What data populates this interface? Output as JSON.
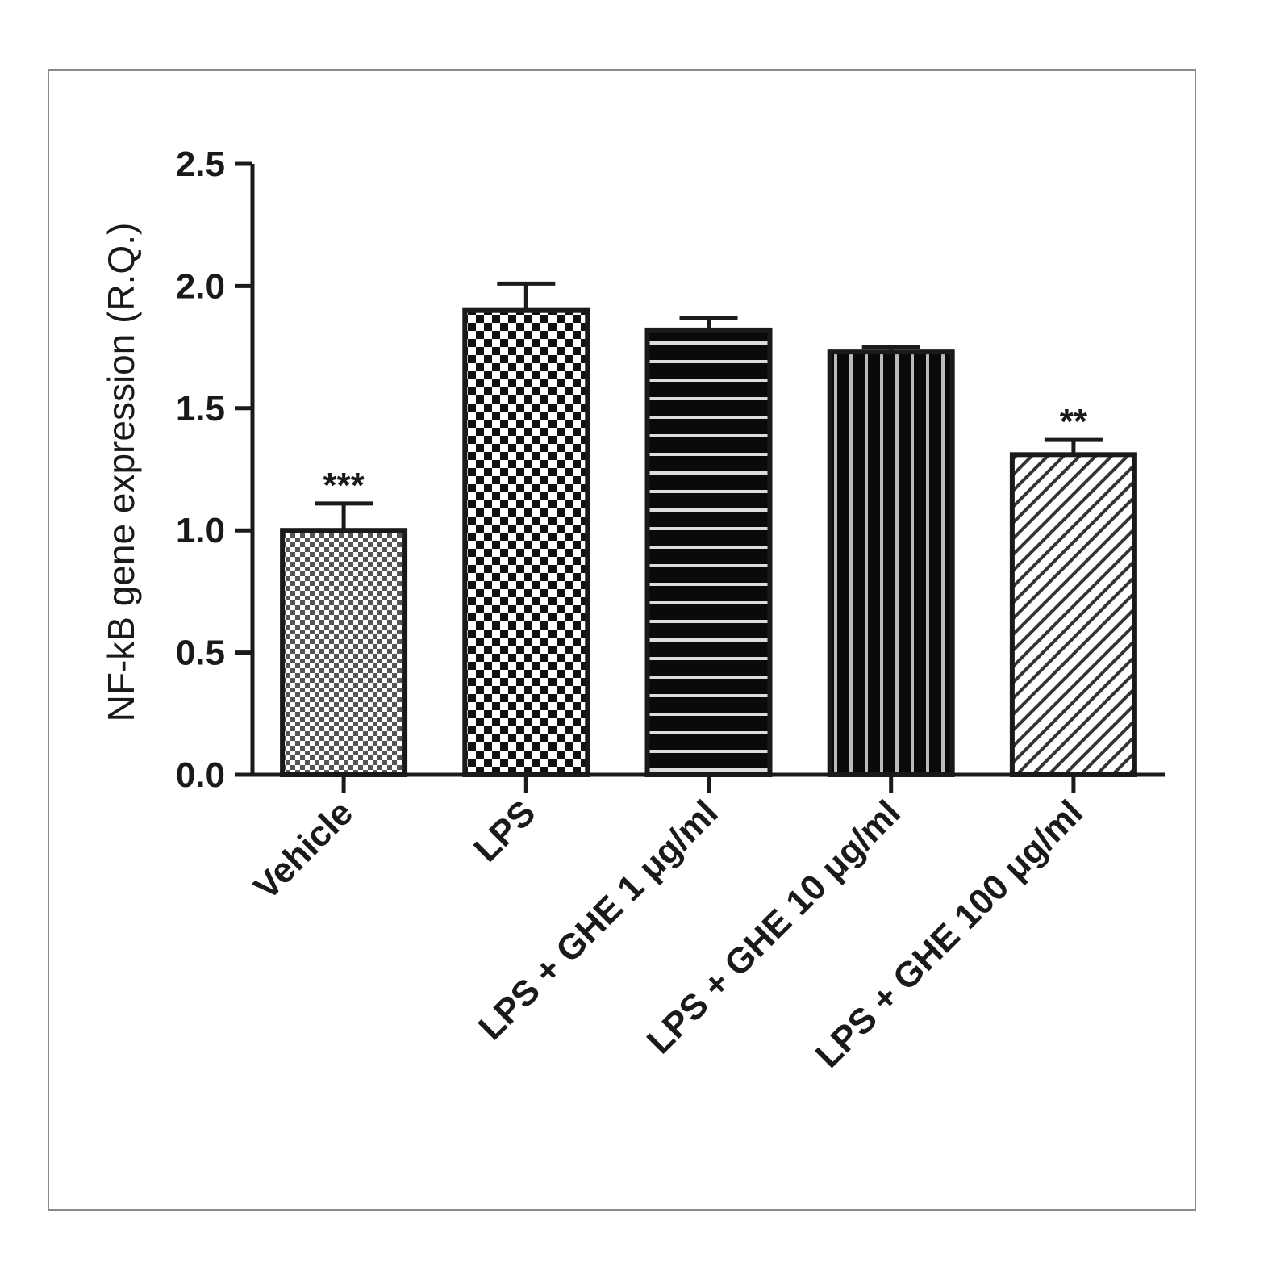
{
  "chart_data": {
    "type": "bar",
    "ylabel": "NF-kB gene expression (R.Q.)",
    "xlabel": "",
    "ylim": [
      0,
      2.5
    ],
    "yticks": [
      "0.0",
      "0.5",
      "1.0",
      "1.5",
      "2.0",
      "2.5"
    ],
    "grid": false,
    "categories": [
      "Vehicle",
      "LPS",
      "LPS + GHE 1 μg/ml",
      "LPS + GHE 10 μg/ml",
      "LPS + GHE 100 μg/ml"
    ],
    "values": [
      1.0,
      1.9,
      1.82,
      1.73,
      1.31
    ],
    "errors": [
      0.11,
      0.11,
      0.05,
      0.02,
      0.06
    ],
    "annotations": [
      "***",
      "",
      "",
      "",
      "**"
    ],
    "patterns": [
      "fine-checker",
      "checkerboard",
      "horizontal-stripes",
      "vertical-stripes",
      "diagonal-hatch"
    ]
  }
}
